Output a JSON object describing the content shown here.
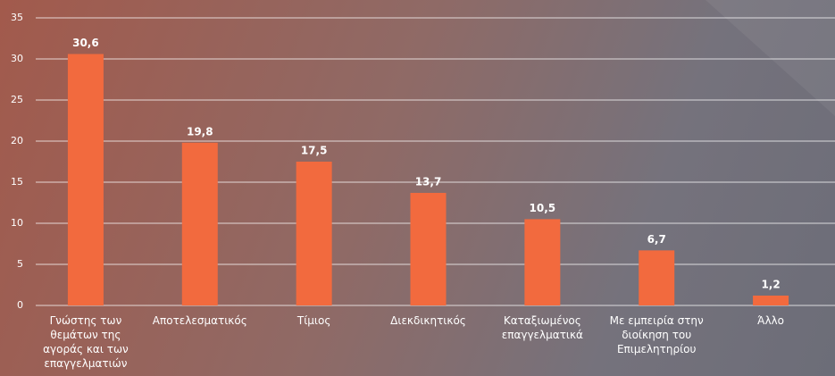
{
  "chart_data": {
    "type": "bar",
    "categories": [
      "Γνώστης των θεμάτων της αγοράς και των επαγγελματιών",
      "Αποτελεσματικός",
      "Τίμιος",
      "Διεκδικητικός",
      "Καταξιωμένος επαγγελματικά",
      "Με εμπειρία στην διοίκηση του Επιμελητηρίου",
      "Άλλο"
    ],
    "values": [
      30.6,
      19.8,
      17.5,
      13.7,
      10.5,
      6.7,
      1.2
    ],
    "value_labels": [
      "30,6",
      "19,8",
      "17,5",
      "13,7",
      "10,5",
      "6,7",
      "1,2"
    ],
    "color": "#f26a3e",
    "ylim": [
      0,
      35
    ],
    "yticks": [
      0,
      5,
      10,
      15,
      20,
      25,
      30,
      35
    ],
    "grid": true
  }
}
